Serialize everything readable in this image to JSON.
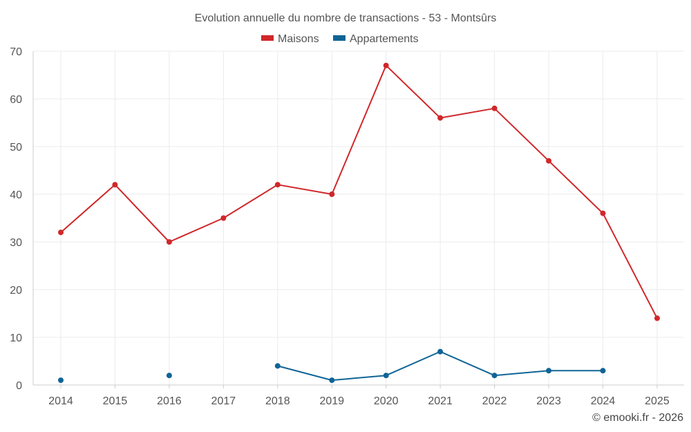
{
  "chart_data": {
    "type": "line",
    "title": "Evolution annuelle du nombre de transactions - 53 - Montsûrs",
    "categories": [
      "2014",
      "2015",
      "2016",
      "2017",
      "2018",
      "2019",
      "2020",
      "2021",
      "2022",
      "2023",
      "2024",
      "2025"
    ],
    "series": [
      {
        "name": "Maisons",
        "color": "#d0272a",
        "values": [
          32,
          42,
          30,
          35,
          42,
          40,
          67,
          56,
          58,
          47,
          36,
          14
        ]
      },
      {
        "name": "Appartements",
        "color": "#0f6496",
        "values": [
          1,
          null,
          2,
          null,
          4,
          1,
          2,
          7,
          2,
          3,
          3,
          null
        ]
      }
    ],
    "ylim": [
      0,
      70
    ],
    "yticks": [
      "0",
      "10",
      "20",
      "30",
      "40",
      "50",
      "60",
      "70"
    ],
    "grid": true,
    "legend": "top-center",
    "xlabel": "",
    "ylabel": ""
  },
  "credit": "© emooki.fr - 2026"
}
